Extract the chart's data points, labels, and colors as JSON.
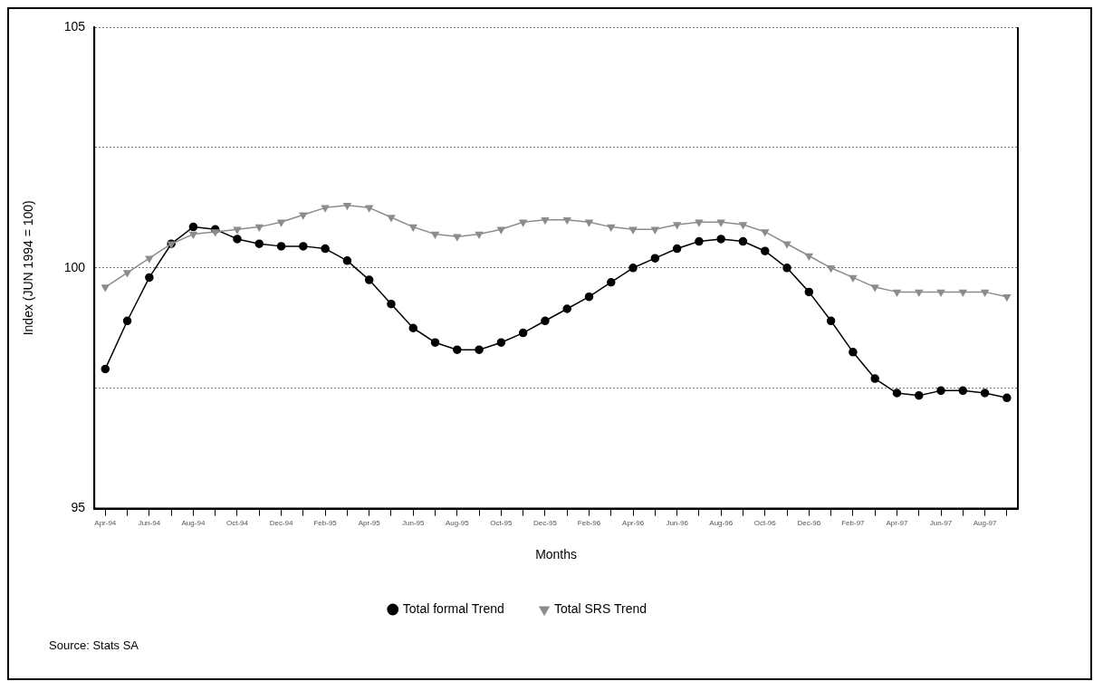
{
  "chart_data": {
    "type": "line",
    "categories": [
      "Apr-94",
      null,
      "Jun-94",
      null,
      "Aug-94",
      null,
      "Oct-94",
      null,
      "Dec-94",
      null,
      "Feb-95",
      null,
      "Apr-95",
      null,
      "Jun-95",
      null,
      "Aug-95",
      null,
      "Oct-95",
      null,
      "Dec-95",
      null,
      "Feb-96",
      null,
      "Apr-96",
      null,
      "Jun-96",
      null,
      "Aug-96",
      null,
      "Oct-96",
      null,
      "Dec-96",
      null,
      "Feb-97",
      null,
      "Apr-97",
      null,
      "Jun-97",
      null,
      "Aug-97",
      null
    ],
    "series": [
      {
        "name": "Total formal Trend",
        "color": "#000000",
        "marker": "circle",
        "values": [
          97.9,
          98.9,
          99.8,
          100.5,
          100.85,
          100.8,
          100.6,
          100.5,
          100.45,
          100.45,
          100.4,
          100.15,
          99.75,
          99.25,
          98.75,
          98.45,
          98.3,
          98.3,
          98.45,
          98.65,
          98.9,
          99.15,
          99.4,
          99.7,
          100.0,
          100.2,
          100.4,
          100.55,
          100.6,
          100.55,
          100.35,
          100.0,
          99.5,
          98.9,
          98.25,
          97.7,
          97.4,
          97.35,
          97.45,
          97.45,
          97.4,
          97.3
        ]
      },
      {
        "name": "Total SRS Trend",
        "color": "#8c8c8c",
        "marker": "triangle",
        "values": [
          99.6,
          99.9,
          100.2,
          100.5,
          100.7,
          100.75,
          100.8,
          100.85,
          100.95,
          101.1,
          101.25,
          101.3,
          101.25,
          101.05,
          100.85,
          100.7,
          100.65,
          100.7,
          100.8,
          100.95,
          101.0,
          101.0,
          100.95,
          100.85,
          100.8,
          100.8,
          100.9,
          100.95,
          100.95,
          100.9,
          100.75,
          100.5,
          100.25,
          100.0,
          99.8,
          99.6,
          99.5,
          99.5,
          99.5,
          99.5,
          99.5,
          99.4
        ]
      }
    ],
    "xlabel": "Months",
    "ylabel": "Index (JUN 1994 = 100)",
    "ylim": [
      95,
      105
    ],
    "yticks": [
      95,
      {
        "value": 97.5,
        "label": null
      },
      100,
      {
        "value": 102.5,
        "label": null
      },
      105
    ],
    "grid": "y",
    "legend": "bottom",
    "annotations": [
      "Source: Stats SA"
    ]
  }
}
